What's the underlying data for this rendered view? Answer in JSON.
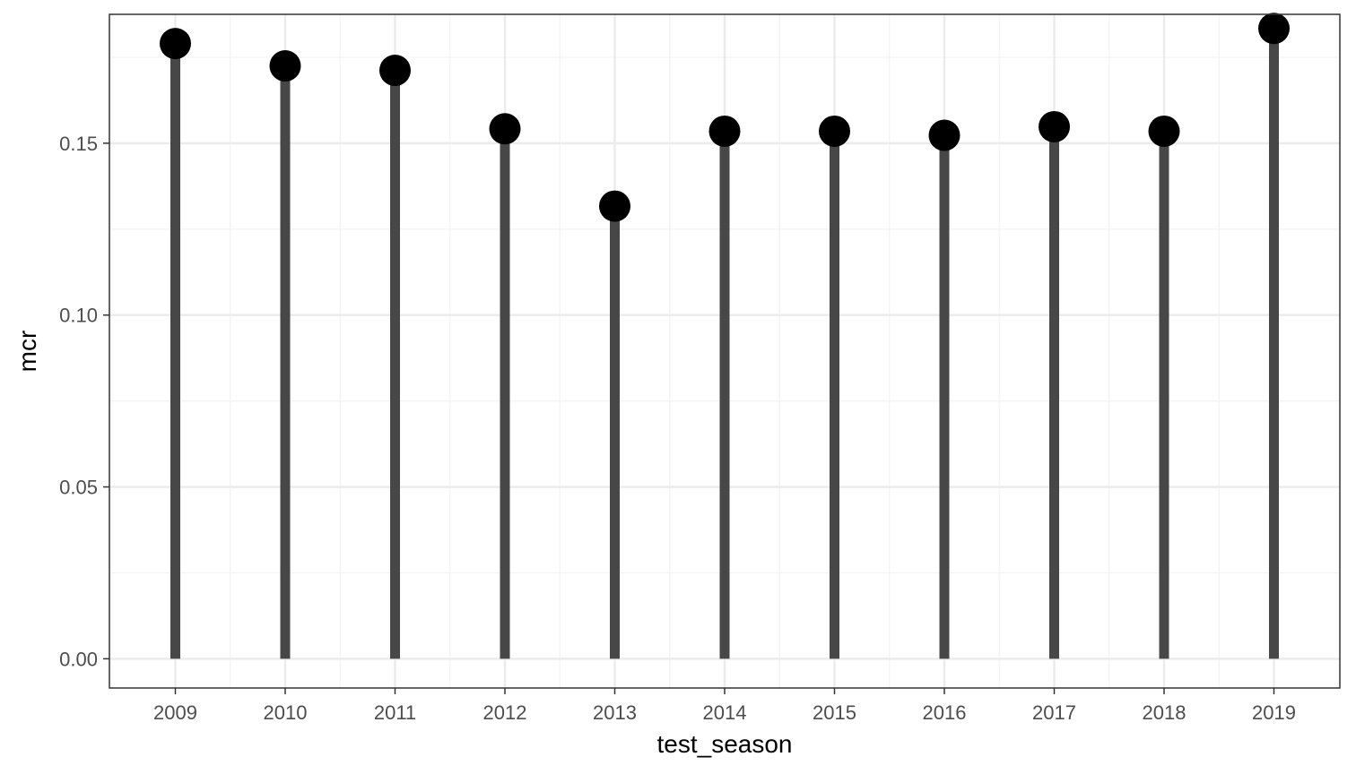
{
  "chart_data": {
    "type": "lollipop",
    "title": "",
    "xlabel": "test_season",
    "ylabel": "mcr",
    "categories": [
      "2009",
      "2010",
      "2011",
      "2012",
      "2013",
      "2014",
      "2015",
      "2016",
      "2017",
      "2018",
      "2019"
    ],
    "values": [
      0.179,
      0.1725,
      0.1712,
      0.1542,
      0.1317,
      0.1535,
      0.1535,
      0.1523,
      0.1548,
      0.1535,
      0.1834
    ],
    "ylim": [
      -0.0085,
      0.1875
    ],
    "yticks": [
      0,
      0.05,
      0.1,
      0.15
    ],
    "ytick_labels": [
      "0.00",
      "0.05",
      "0.10",
      "0.15"
    ],
    "grid": true,
    "legend": "none",
    "colors": {
      "stem": "#474747",
      "point": "#000000",
      "panel_border": "#333333",
      "grid_major": "#ebebeb",
      "grid_minor": "#f3f3f3",
      "tick_text": "#4d4d4d",
      "axis_title": "#000000"
    }
  }
}
